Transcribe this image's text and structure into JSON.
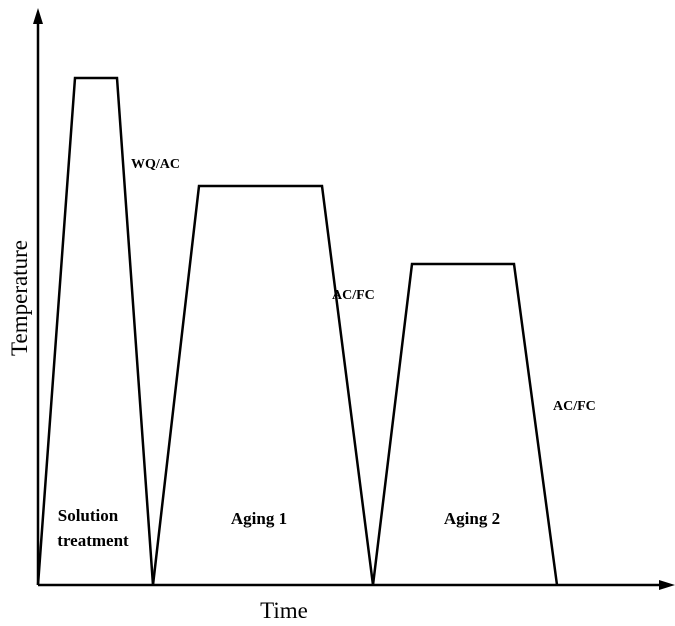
{
  "axes": {
    "x_label": "Time",
    "y_label": "Temperature"
  },
  "stages": [
    {
      "lines": [
        "Solution",
        "treatment"
      ]
    },
    {
      "lines": [
        "Aging 1"
      ]
    },
    {
      "lines": [
        "Aging 2"
      ]
    }
  ],
  "cooling_labels": [
    "WQ/AC",
    "AC/FC",
    "AC/FC"
  ]
}
